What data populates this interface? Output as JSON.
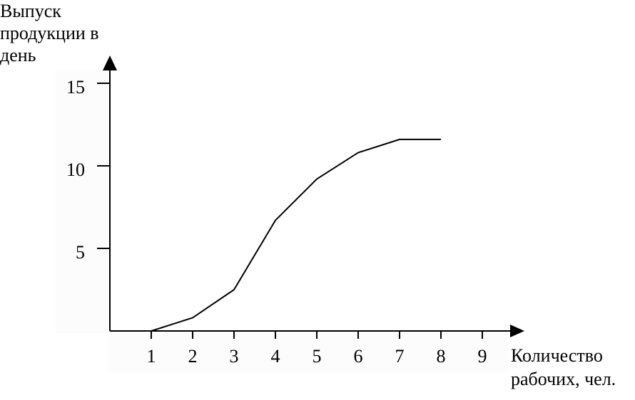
{
  "chart_data": {
    "type": "line",
    "title": "",
    "ylabel_lines": [
      "Выпуск",
      "продукции в",
      "день"
    ],
    "xlabel_lines": [
      "Количество",
      "рабочих, чел."
    ],
    "x_ticks": [
      "1",
      "2",
      "3",
      "4",
      "5",
      "6",
      "7",
      "8",
      "9"
    ],
    "y_ticks": [
      "5",
      "10",
      "15"
    ],
    "xlim": [
      0,
      9.5
    ],
    "ylim": [
      0,
      17
    ],
    "grid": false,
    "legend": "none",
    "series": [
      {
        "x": [
          1,
          2,
          3,
          4,
          5,
          6,
          7,
          8
        ],
        "y": [
          0,
          0.8,
          2.5,
          6.7,
          9.2,
          10.8,
          11.6,
          11.6
        ]
      }
    ]
  }
}
